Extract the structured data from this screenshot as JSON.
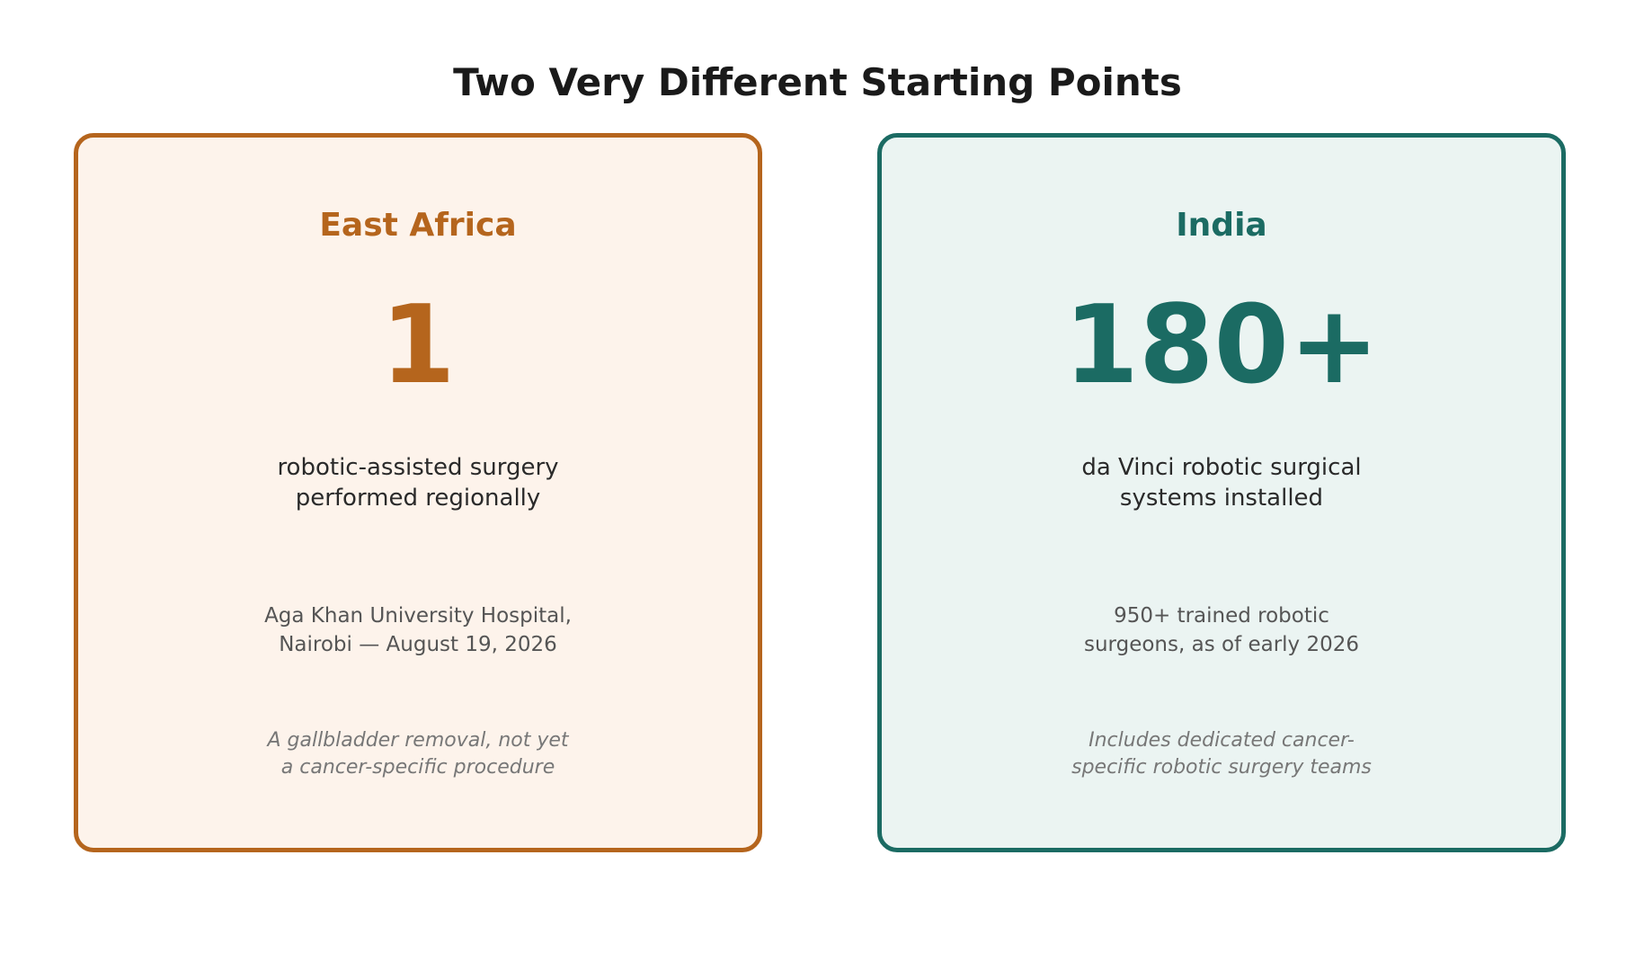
{
  "title": "Two Very Different Starting Points",
  "colors": {
    "east_africa_accent": "#b5651d",
    "east_africa_bg": "#fdf3eb",
    "india_accent": "#1b6b63",
    "india_bg": "#ebf4f2"
  },
  "cards": [
    {
      "region": "East Africa",
      "number": "1",
      "description": [
        "robotic-assisted surgery",
        "performed regionally"
      ],
      "detail": [
        "Aga Khan University Hospital,",
        "Nairobi — August 19, 2026"
      ],
      "note": [
        "A gallbladder removal, not yet",
        "a cancer-specific procedure"
      ]
    },
    {
      "region": "India",
      "number": "180+",
      "description": [
        "da Vinci robotic surgical",
        "systems installed"
      ],
      "detail": [
        "950+ trained robotic",
        "surgeons, as of early 2026"
      ],
      "note": [
        "Includes dedicated cancer-",
        "specific robotic surgery teams"
      ]
    }
  ]
}
